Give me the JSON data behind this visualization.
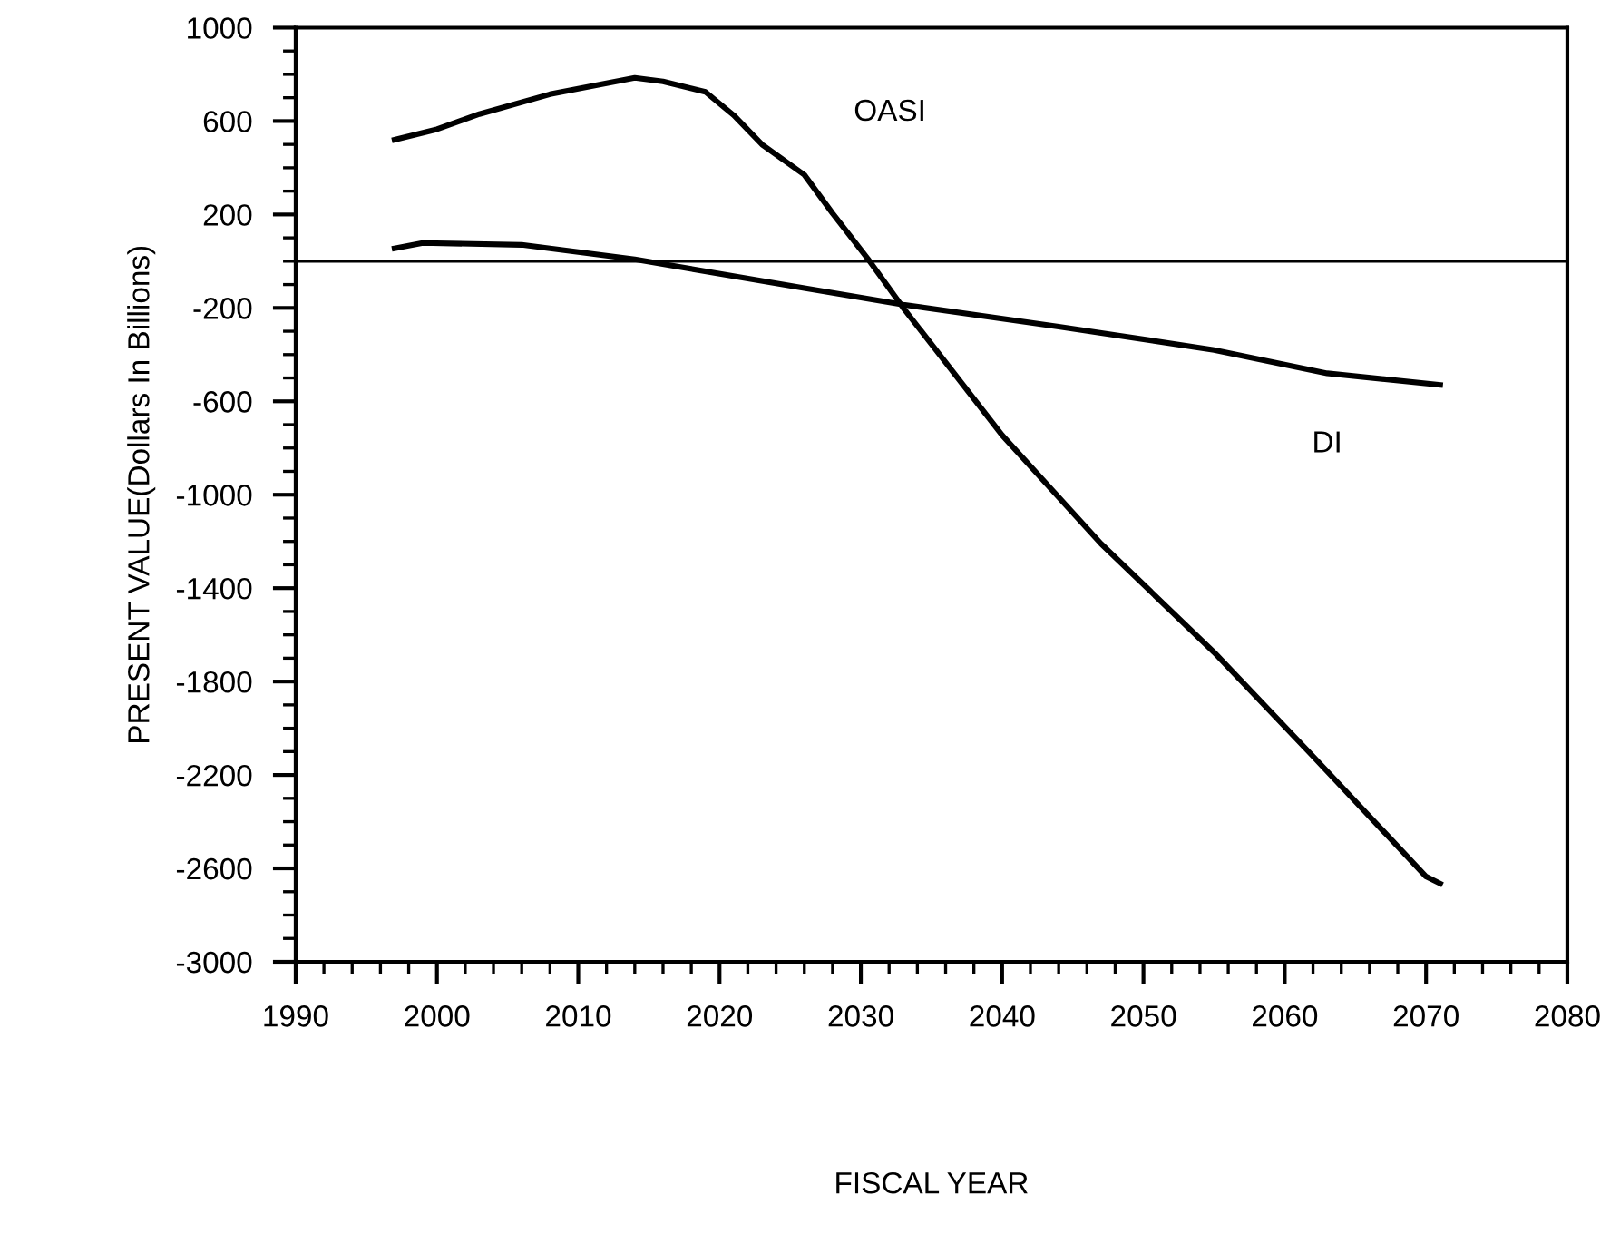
{
  "chart_data": {
    "type": "line",
    "xlabel": "FISCAL YEAR",
    "ylabel": "PRESENT VALUE(Dollars In Billions)",
    "xlim": [
      1990,
      2080
    ],
    "xticks": [
      1990,
      2000,
      2010,
      2020,
      2030,
      2040,
      2050,
      2060,
      2070,
      2080
    ],
    "ylim": [
      -3000,
      1000
    ],
    "yticks": [
      -3000,
      -2600,
      -2200,
      -1800,
      -1400,
      -1000,
      -600,
      -200,
      200,
      600,
      1000
    ],
    "grid": false,
    "legend": false,
    "marker": "none",
    "line_style": "solid",
    "ref_lines": [
      {
        "axis": "y",
        "value": 0,
        "color": "#000000"
      }
    ],
    "series": [
      {
        "name": "OASI",
        "color": "#000000",
        "x": [
          1997,
          2000,
          2003,
          2008,
          2014,
          2016,
          2019,
          2021,
          2023,
          2026,
          2028,
          2030.5,
          2033,
          2040,
          2047,
          2055,
          2062,
          2070,
          2071
        ],
        "values": [
          520,
          565,
          630,
          715,
          785,
          770,
          725,
          625,
          500,
          370,
          205,
          10,
          -200,
          -745,
          -1210,
          -1675,
          -2120,
          -2635,
          -2665
        ]
      },
      {
        "name": "DI",
        "color": "#000000",
        "x": [
          1997,
          1999,
          2006,
          2014,
          2026,
          2033,
          2044,
          2055,
          2063,
          2071
        ],
        "values": [
          55,
          78,
          70,
          8,
          -115,
          -186,
          -280,
          -380,
          -480,
          -530
        ]
      }
    ]
  }
}
